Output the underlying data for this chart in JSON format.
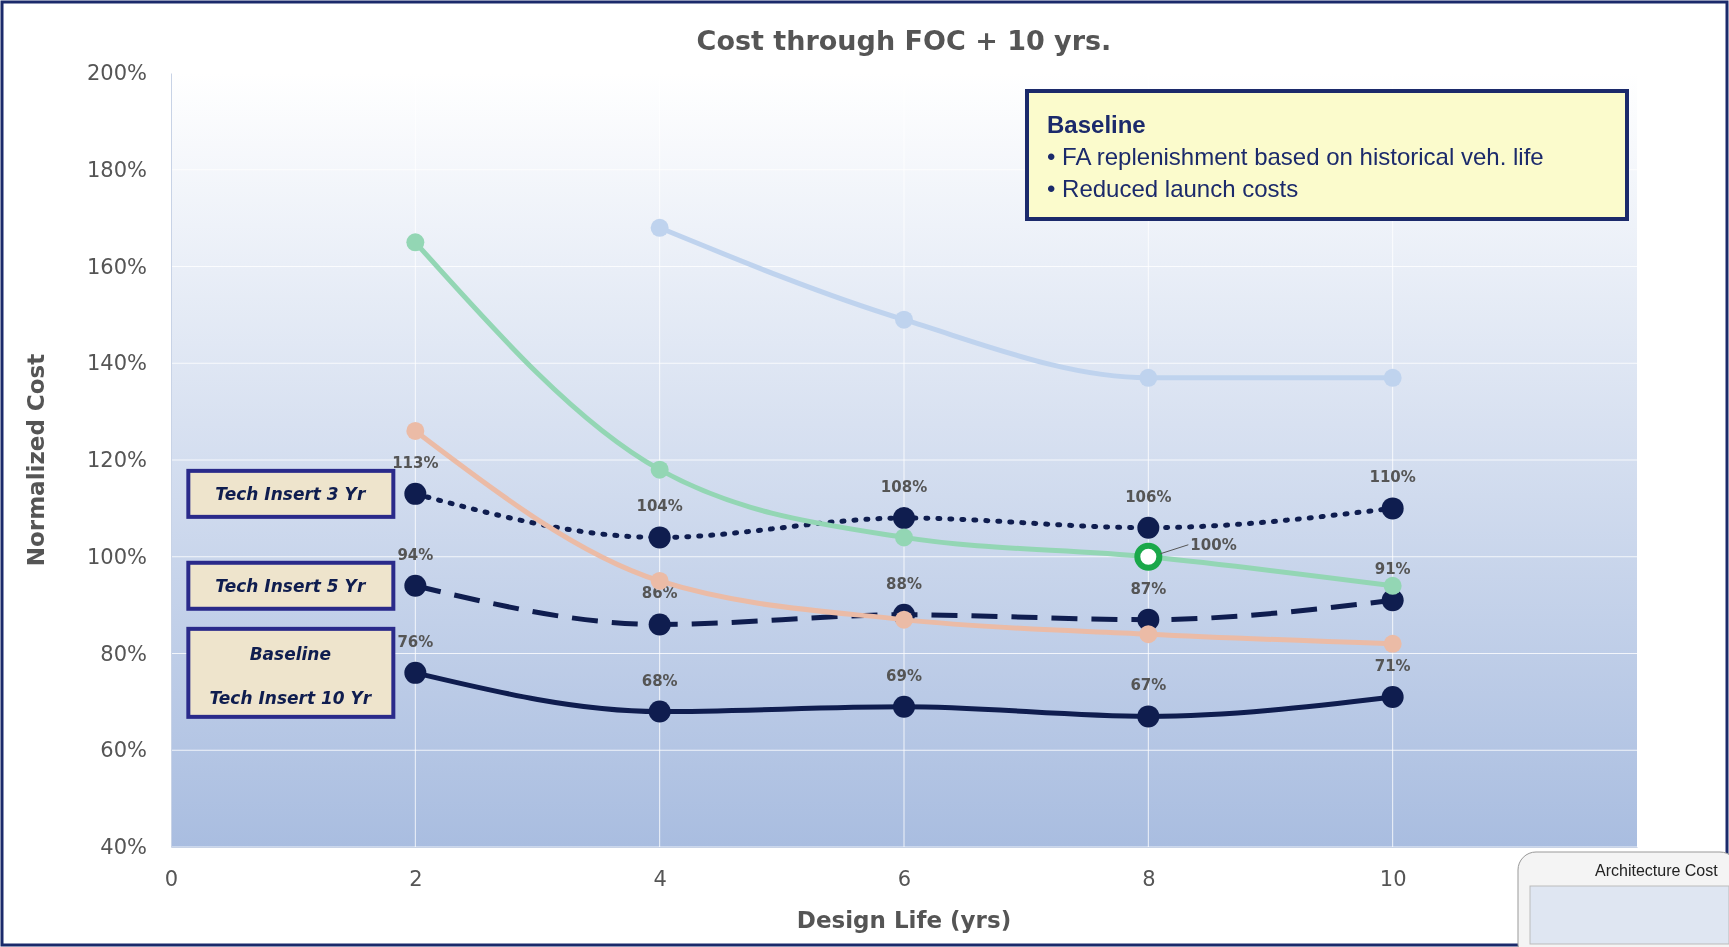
{
  "chart_data": {
    "type": "line",
    "title": "Cost through FOC + 10 yrs.",
    "xlabel": "Design Life (yrs)",
    "ylabel": "Normalized Cost",
    "xlim": [
      0,
      12
    ],
    "xticks": [
      0,
      2,
      4,
      6,
      8,
      10
    ],
    "ylim": [
      40,
      200
    ],
    "yticks": [
      {
        "value": 40,
        "label": "40%"
      },
      {
        "value": 60,
        "label": "60%"
      },
      {
        "value": 80,
        "label": "80%"
      },
      {
        "value": 100,
        "label": "100%"
      },
      {
        "value": 120,
        "label": "120%"
      },
      {
        "value": 140,
        "label": "140%"
      },
      {
        "value": 160,
        "label": "160%"
      },
      {
        "value": 180,
        "label": "180%"
      },
      {
        "value": 200,
        "label": "200%"
      }
    ],
    "grid": true,
    "marker": "circle",
    "legend": "left",
    "x": [
      2,
      4,
      6,
      8,
      10
    ],
    "series": [
      {
        "color": "#bfd3ee",
        "values": [
          null,
          168,
          149,
          137,
          137
        ]
      },
      {
        "color": "#93d6b4",
        "values": [
          165,
          118,
          104,
          100,
          94
        ]
      },
      {
        "color": "#ebbba6",
        "values": [
          126,
          95,
          87,
          84,
          82
        ]
      },
      {
        "name": "Tech Insert 3 Yr",
        "color": "#0f1d4f",
        "line_style": "dotted",
        "values": [
          113,
          104,
          108,
          106,
          110
        ],
        "value_labels": [
          "113%",
          "104%",
          "108%",
          "106%",
          "110%"
        ]
      },
      {
        "name": "Tech Insert 5 Yr",
        "color": "#0f1d4f",
        "line_style": "dashed",
        "values": [
          94,
          86,
          88,
          87,
          91
        ],
        "value_labels": [
          "94%",
          "86%",
          "88%",
          "87%",
          "91%"
        ]
      },
      {
        "name": "Baseline\nTech Insert 10 Yr",
        "color": "#0f1d4f",
        "line_style": "solid",
        "values": [
          76,
          68,
          69,
          67,
          71
        ],
        "value_labels": [
          "76%",
          "68%",
          "69%",
          "67%",
          "71%"
        ]
      }
    ],
    "annotations": [
      {
        "text": "100%",
        "x": 8,
        "y": 100
      },
      "Baseline\n• FA replenishment based on historical veh. life\n• Reduced launch costs",
      "Architecture Cost"
    ]
  }
}
